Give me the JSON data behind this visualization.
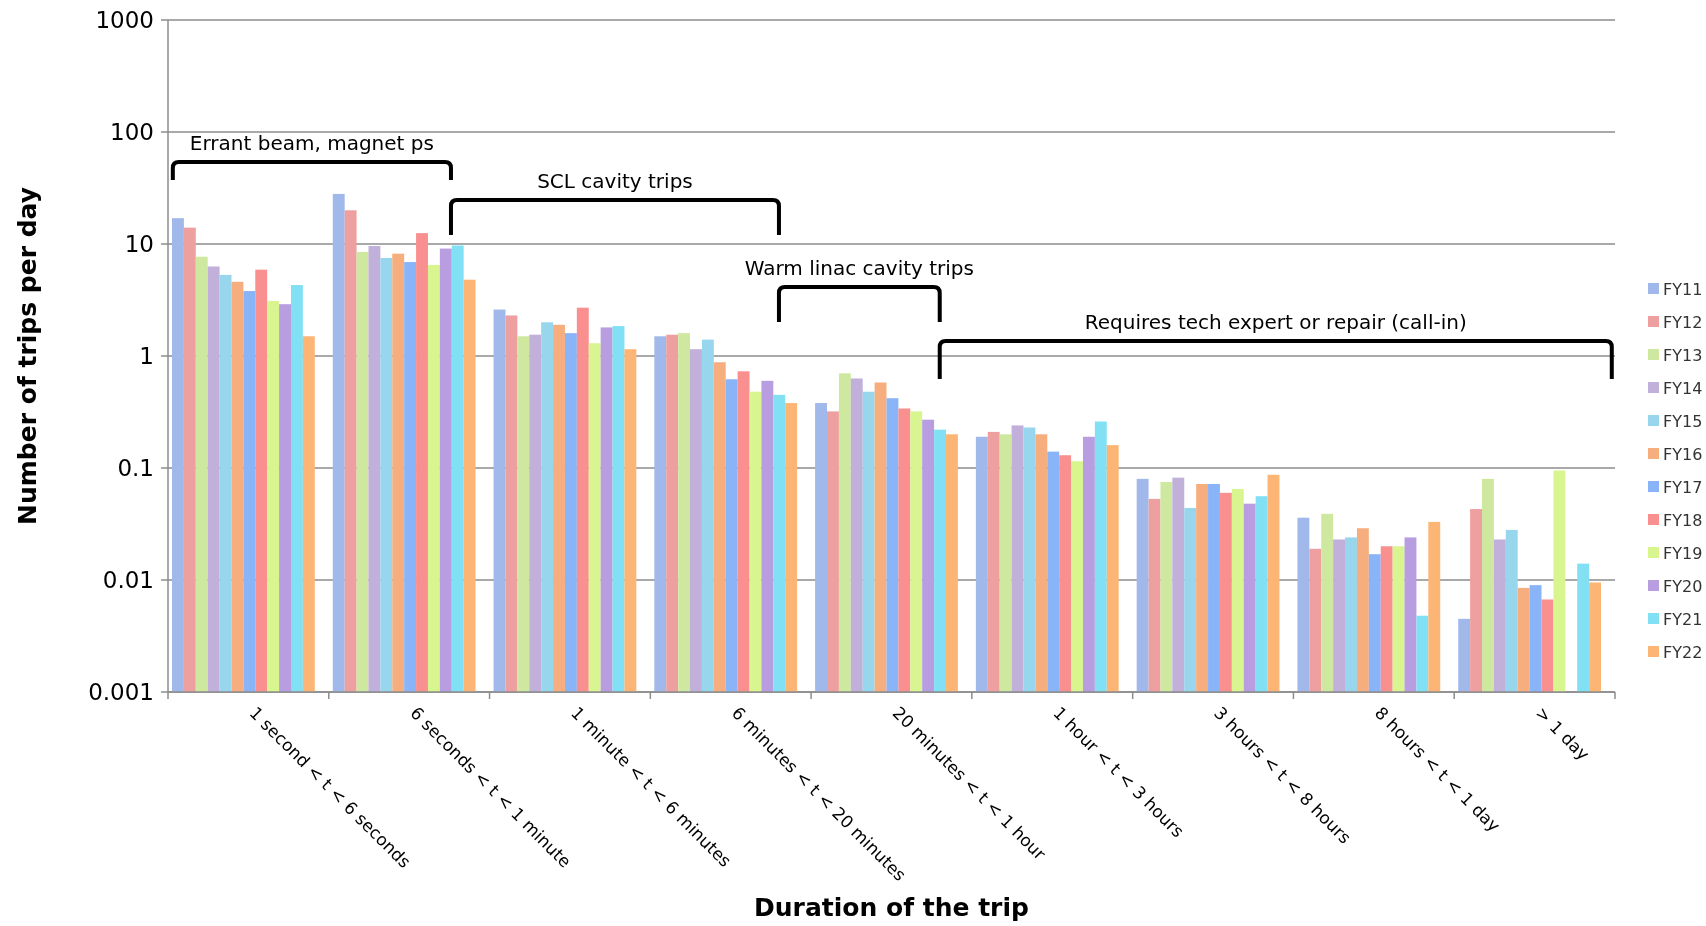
{
  "chart_data": {
    "type": "bar",
    "xlabel": "Duration of the trip",
    "ylabel": "Number of trips per day",
    "log": true,
    "grid": "y",
    "legend": "right",
    "categories": [
      "1 second < t < 6 seconds",
      "6 seconds < t < 1 minute",
      "1 minute < t < 6 minutes",
      "6 minutes < t < 20 minutes",
      "20 minutes < t < 1 hour",
      "1 hour < t < 3 hours",
      "3 hours < t < 8 hours",
      "8 hours < t < 1 day",
      "> 1 day"
    ],
    "ylim": [
      0.001,
      1000
    ],
    "yticks": [
      0.001,
      0.01,
      0.1,
      1,
      10,
      100,
      1000
    ],
    "annotations": [
      "Errant beam, magnet ps",
      "SCL cavity trips",
      "Warm linac cavity trips",
      "Requires tech expert or repair (call-in)"
    ],
    "series": [
      {
        "name": "FY11",
        "color": "#a0b8ea",
        "values": [
          17,
          28,
          2.6,
          1.5,
          0.38,
          0.19,
          0.08,
          0.036,
          0.0045
        ]
      },
      {
        "name": "FY12",
        "color": "#ee9f9f",
        "values": [
          14,
          20,
          2.3,
          1.55,
          0.32,
          0.21,
          0.053,
          0.019,
          0.043
        ]
      },
      {
        "name": "FY13",
        "color": "#cfe8a0",
        "values": [
          7.7,
          8.5,
          1.5,
          1.6,
          0.7,
          0.2,
          0.075,
          0.039,
          0.08
        ]
      },
      {
        "name": "FY14",
        "color": "#c0b0da",
        "values": [
          6.3,
          9.6,
          1.55,
          1.15,
          0.63,
          0.24,
          0.082,
          0.023,
          0.023
        ]
      },
      {
        "name": "FY15",
        "color": "#98d6ee",
        "values": [
          5.3,
          7.5,
          2.0,
          1.4,
          0.48,
          0.23,
          0.044,
          0.024,
          0.028
        ]
      },
      {
        "name": "FY16",
        "color": "#f7ae7e",
        "values": [
          4.6,
          8.2,
          1.9,
          0.88,
          0.58,
          0.2,
          0.072,
          0.029,
          0.0085
        ]
      },
      {
        "name": "FY17",
        "color": "#8ab4f8",
        "values": [
          3.8,
          6.9,
          1.6,
          0.62,
          0.42,
          0.14,
          0.072,
          0.017,
          0.009
        ]
      },
      {
        "name": "FY18",
        "color": "#f98f8f",
        "values": [
          5.9,
          12.5,
          2.7,
          0.73,
          0.34,
          0.13,
          0.06,
          0.02,
          0.0067
        ]
      },
      {
        "name": "FY19",
        "color": "#d8f590",
        "values": [
          3.1,
          6.5,
          1.3,
          0.48,
          0.32,
          0.115,
          0.065,
          0.02,
          0.095
        ]
      },
      {
        "name": "FY20",
        "color": "#b89de0",
        "values": [
          2.9,
          9.1,
          1.8,
          0.6,
          0.27,
          0.19,
          0.048,
          0.024,
          null
        ]
      },
      {
        "name": "FY21",
        "color": "#82e0f5",
        "values": [
          4.3,
          9.7,
          1.85,
          0.45,
          0.22,
          0.26,
          0.056,
          0.0048,
          0.014
        ]
      },
      {
        "name": "FY22",
        "color": "#fdb575",
        "values": [
          1.5,
          4.8,
          1.15,
          0.38,
          0.2,
          0.16,
          0.087,
          0.033,
          0.0095
        ]
      }
    ]
  }
}
